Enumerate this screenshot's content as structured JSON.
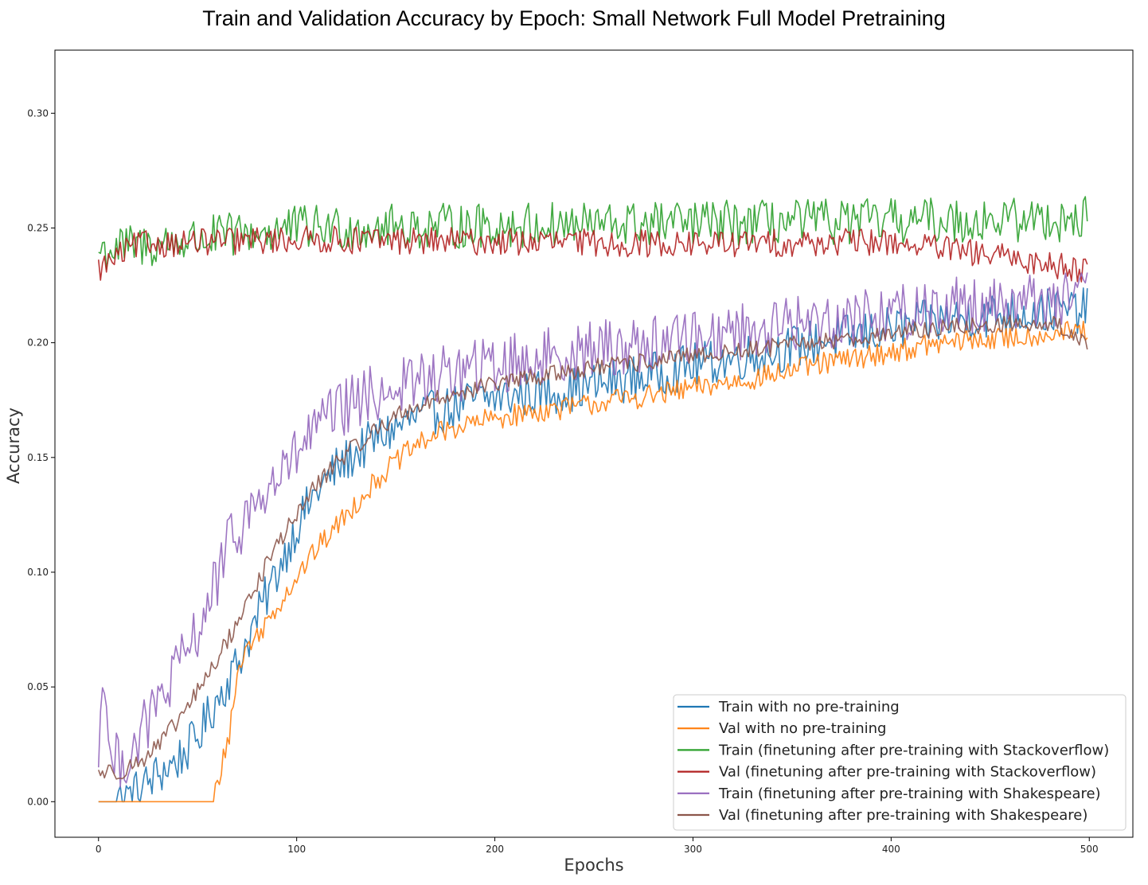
{
  "chart_data": {
    "type": "line",
    "title": "Train and Validation Accuracy by Epoch: Small Network Full Model Pretraining",
    "xlabel": "Epochs",
    "ylabel": "Accuracy",
    "xlim": [
      -22,
      522
    ],
    "ylim": [
      -0.0155,
      0.3275
    ],
    "xticks": [
      0,
      100,
      200,
      300,
      400,
      500
    ],
    "xtick_labels": [
      "0",
      "100",
      "200",
      "300",
      "400",
      "500"
    ],
    "yticks": [
      0.0,
      0.05,
      0.1,
      0.15,
      0.2,
      0.25,
      0.3
    ],
    "ytick_labels": [
      "0.00",
      "0.05",
      "0.10",
      "0.15",
      "0.20",
      "0.25",
      "0.30"
    ],
    "grid": false,
    "legend_position": "lower-right",
    "num_epochs": 500,
    "series": [
      {
        "name": "Train with no pre-training",
        "color": "#1f77b4",
        "anchors_x": [
          0,
          8,
          15,
          22,
          30,
          40,
          50,
          60,
          70,
          80,
          90,
          100,
          110,
          120,
          130,
          140,
          150,
          160,
          170,
          180,
          190,
          200,
          220,
          240,
          260,
          280,
          300,
          320,
          340,
          360,
          380,
          400,
          420,
          440,
          460,
          480,
          499
        ],
        "anchors_y": [
          0.0,
          0.0,
          0.002,
          0.006,
          0.012,
          0.018,
          0.028,
          0.045,
          0.06,
          0.08,
          0.1,
          0.12,
          0.135,
          0.145,
          0.152,
          0.158,
          0.163,
          0.167,
          0.17,
          0.172,
          0.175,
          0.176,
          0.178,
          0.18,
          0.183,
          0.186,
          0.19,
          0.193,
          0.196,
          0.2,
          0.203,
          0.206,
          0.209,
          0.211,
          0.213,
          0.214,
          0.214
        ],
        "noise": 0.01
      },
      {
        "name": "Val with no pre-training",
        "color": "#ff7f0e",
        "anchors_x": [
          0,
          58,
          62,
          66,
          70,
          75,
          80,
          90,
          100,
          110,
          120,
          130,
          140,
          150,
          160,
          170,
          180,
          200,
          220,
          240,
          260,
          280,
          300,
          320,
          340,
          360,
          380,
          400,
          420,
          440,
          460,
          480,
          499
        ],
        "anchors_y": [
          0.0,
          0.0,
          0.015,
          0.03,
          0.055,
          0.068,
          0.072,
          0.085,
          0.098,
          0.11,
          0.12,
          0.13,
          0.14,
          0.148,
          0.155,
          0.16,
          0.163,
          0.167,
          0.17,
          0.172,
          0.175,
          0.177,
          0.18,
          0.183,
          0.186,
          0.19,
          0.193,
          0.196,
          0.199,
          0.201,
          0.202,
          0.204,
          0.205
        ],
        "noise": 0.005
      },
      {
        "name": "Train (finetuning after pre-training with Stackoverflow)",
        "color": "#2ca02c",
        "anchors_x": [
          0,
          100,
          200,
          300,
          400,
          499
        ],
        "anchors_y": [
          0.24,
          0.25,
          0.251,
          0.252,
          0.253,
          0.254
        ],
        "noise": 0.01
      },
      {
        "name": "Val (finetuning after pre-training with Stackoverflow)",
        "color": "#b22222",
        "anchors_x": [
          0,
          20,
          100,
          200,
          300,
          400,
          499
        ],
        "anchors_y": [
          0.232,
          0.243,
          0.245,
          0.244,
          0.243,
          0.244,
          0.232
        ],
        "noise": 0.006
      },
      {
        "name": "Train (finetuning after pre-training with Shakespeare)",
        "color": "#9467bd",
        "anchors_x": [
          0,
          3,
          6,
          15,
          25,
          35,
          45,
          55,
          65,
          75,
          85,
          95,
          105,
          115,
          125,
          140,
          160,
          180,
          200,
          220,
          240,
          260,
          280,
          300,
          320,
          340,
          360,
          380,
          400,
          420,
          440,
          460,
          480,
          499
        ],
        "anchors_y": [
          0.022,
          0.06,
          0.016,
          0.02,
          0.035,
          0.05,
          0.065,
          0.085,
          0.11,
          0.125,
          0.135,
          0.145,
          0.158,
          0.166,
          0.172,
          0.178,
          0.183,
          0.187,
          0.19,
          0.193,
          0.196,
          0.198,
          0.2,
          0.203,
          0.205,
          0.207,
          0.209,
          0.211,
          0.213,
          0.215,
          0.217,
          0.218,
          0.219,
          0.22
        ],
        "noise": 0.013
      },
      {
        "name": "Val (finetuning after pre-training with Shakespeare)",
        "color": "#8c564b",
        "anchors_x": [
          0,
          10,
          20,
          30,
          40,
          50,
          60,
          70,
          80,
          90,
          100,
          110,
          120,
          130,
          140,
          150,
          160,
          170,
          180,
          200,
          220,
          240,
          260,
          280,
          300,
          320,
          340,
          360,
          380,
          400,
          420,
          440,
          460,
          480,
          499
        ],
        "anchors_y": [
          0.013,
          0.013,
          0.017,
          0.024,
          0.035,
          0.048,
          0.062,
          0.078,
          0.095,
          0.112,
          0.125,
          0.138,
          0.148,
          0.155,
          0.162,
          0.168,
          0.172,
          0.175,
          0.178,
          0.182,
          0.185,
          0.188,
          0.19,
          0.192,
          0.194,
          0.196,
          0.198,
          0.2,
          0.202,
          0.204,
          0.206,
          0.207,
          0.208,
          0.209,
          0.2
        ],
        "noise": 0.004
      }
    ]
  }
}
